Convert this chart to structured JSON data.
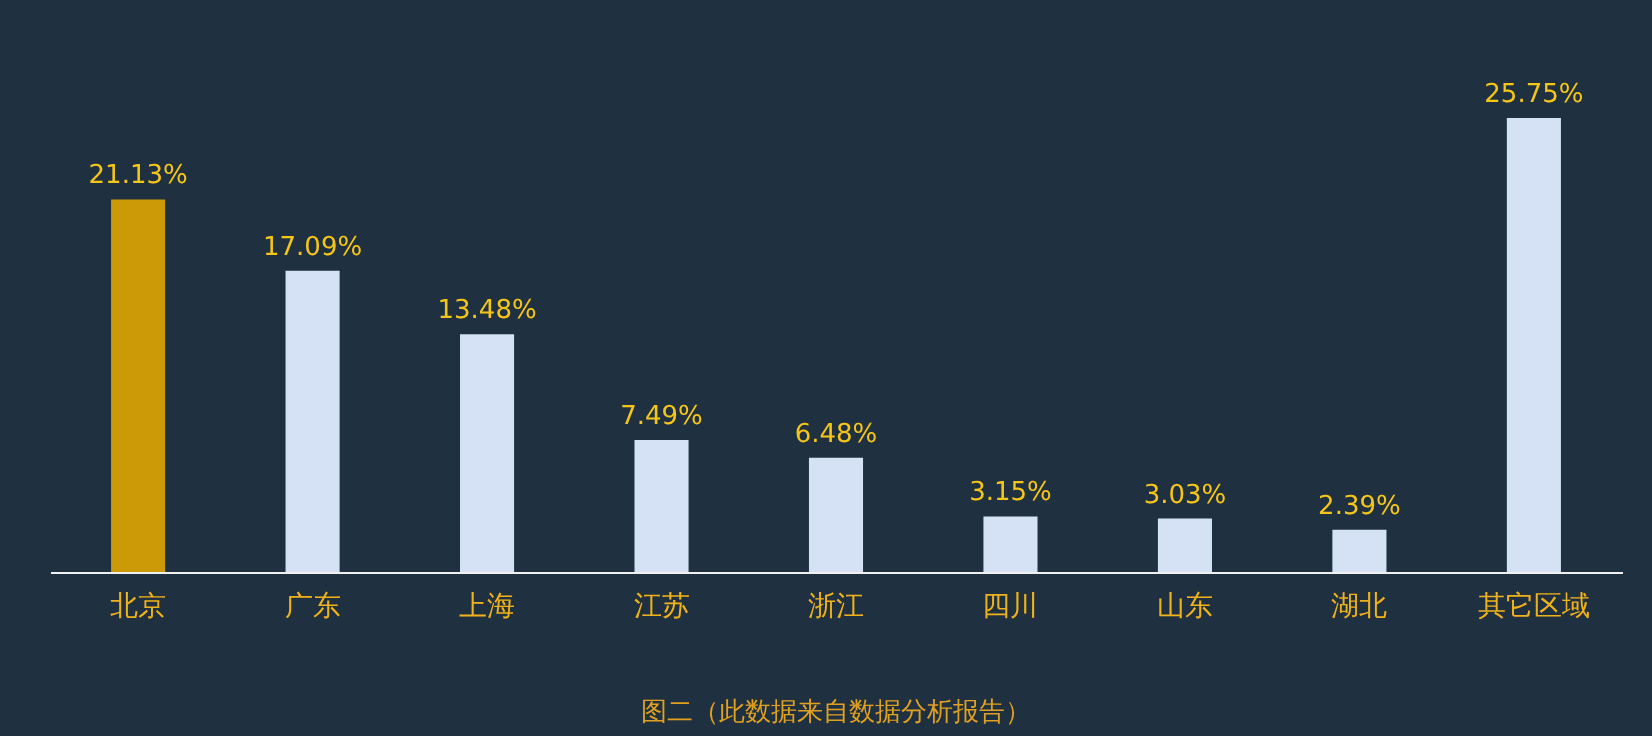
{
  "chart_data": {
    "type": "bar",
    "categories": [
      "北京",
      "广东",
      "上海",
      "江苏",
      "浙江",
      "四川",
      "山东",
      "湖北",
      "其它区域"
    ],
    "values": [
      21.13,
      17.09,
      13.48,
      7.49,
      6.48,
      3.15,
      3.03,
      2.39,
      25.75
    ],
    "value_labels": [
      "21.13%",
      "17.09%",
      "13.48%",
      "7.49%",
      "6.48%",
      "3.15%",
      "3.03%",
      "2.39%",
      "25.75%"
    ],
    "colors": [
      "#cc9a06",
      "#d5e1f5",
      "#d5e1f5",
      "#d5e1f5",
      "#d5e1f5",
      "#d5e1f5",
      "#d5e1f5",
      "#d5e1f5",
      "#d5e1f5"
    ],
    "annotations": [
      "图二（此数据来自数据分析报告）"
    ]
  }
}
